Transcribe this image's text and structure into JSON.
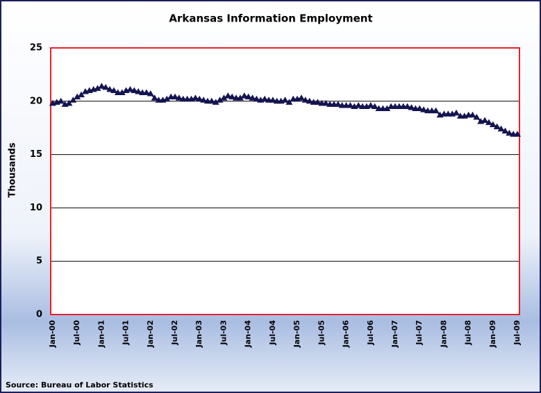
{
  "chart_data": {
    "type": "line",
    "title": "Arkansas Information Employment",
    "y_label": "Thousands",
    "source": "Source: Bureau of Labor Statistics",
    "categories": [
      "Jan-00",
      null,
      null,
      null,
      null,
      null,
      "Jul-00",
      null,
      null,
      null,
      null,
      null,
      "Jan-01",
      null,
      null,
      null,
      null,
      null,
      "Jul-01",
      null,
      null,
      null,
      null,
      null,
      "Jan-02",
      null,
      null,
      null,
      null,
      null,
      "Jul-02",
      null,
      null,
      null,
      null,
      null,
      "Jan-03",
      null,
      null,
      null,
      null,
      null,
      "Jul-03",
      null,
      null,
      null,
      null,
      null,
      "Jan-04",
      null,
      null,
      null,
      null,
      null,
      "Jul-04",
      null,
      null,
      null,
      null,
      null,
      "Jan-05",
      null,
      null,
      null,
      null,
      null,
      "Jul-05",
      null,
      null,
      null,
      null,
      null,
      "Jan-06",
      null,
      null,
      null,
      null,
      null,
      "Jul-06",
      null,
      null,
      null,
      null,
      null,
      "Jan-07",
      null,
      null,
      null,
      null,
      null,
      "Jul-07",
      null,
      null,
      null,
      null,
      null,
      "Jan-08",
      null,
      null,
      null,
      null,
      null,
      "Jul-08",
      null,
      null,
      null,
      null,
      null,
      "Jan-09",
      null,
      null,
      null,
      null,
      null,
      "Jul-09"
    ],
    "values": [
      19.8,
      19.9,
      20.0,
      19.7,
      19.8,
      20.1,
      20.4,
      20.6,
      20.9,
      21.0,
      21.1,
      21.2,
      21.4,
      21.3,
      21.1,
      21.0,
      20.8,
      20.8,
      21.0,
      21.1,
      21.0,
      20.9,
      20.8,
      20.8,
      20.7,
      20.3,
      20.1,
      20.1,
      20.2,
      20.4,
      20.4,
      20.3,
      20.2,
      20.2,
      20.2,
      20.3,
      20.2,
      20.1,
      20.0,
      20.0,
      19.9,
      20.1,
      20.3,
      20.5,
      20.4,
      20.3,
      20.3,
      20.5,
      20.4,
      20.3,
      20.2,
      20.1,
      20.2,
      20.1,
      20.1,
      20.0,
      20.0,
      20.1,
      19.9,
      20.2,
      20.2,
      20.3,
      20.1,
      20.0,
      19.9,
      19.9,
      19.8,
      19.8,
      19.7,
      19.7,
      19.7,
      19.6,
      19.6,
      19.6,
      19.5,
      19.6,
      19.5,
      19.5,
      19.6,
      19.5,
      19.3,
      19.3,
      19.3,
      19.5,
      19.5,
      19.5,
      19.5,
      19.5,
      19.4,
      19.3,
      19.3,
      19.2,
      19.1,
      19.1,
      19.1,
      18.7,
      18.8,
      18.8,
      18.8,
      18.9,
      18.6,
      18.6,
      18.7,
      18.7,
      18.5,
      18.1,
      18.2,
      18.0,
      17.8,
      17.6,
      17.4,
      17.2,
      17.0,
      16.9,
      16.9
    ],
    "color": "#141450",
    "ylim": [
      0,
      25
    ],
    "yticks": [
      0,
      5,
      10,
      15,
      20,
      25
    ],
    "grid": true
  }
}
